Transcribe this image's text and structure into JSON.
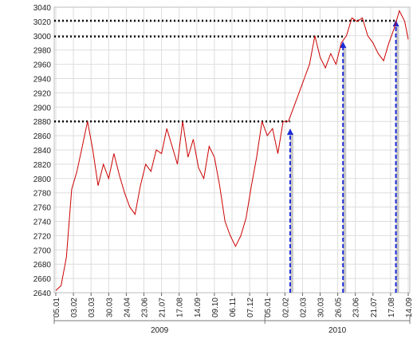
{
  "chart_data": {
    "type": "line",
    "title": "",
    "xlabel": "",
    "ylabel": "",
    "ylim": [
      2640,
      3040
    ],
    "y_ticks": [
      "2640",
      "2660",
      "2680",
      "2700",
      "2720",
      "2740",
      "2760",
      "2780",
      "2800",
      "2820",
      "2840",
      "2860",
      "2880",
      "2900",
      "2920",
      "2940",
      "2960",
      "2980",
      "3000",
      "3020",
      "3040"
    ],
    "x_ticks": [
      "05.01",
      "03.02",
      "03.03",
      "30.03",
      "24.04",
      "23.06",
      "21.07",
      "17.08",
      "14.09",
      "09.10",
      "06.11",
      "07.12",
      "05.01",
      "02.02",
      "02.03",
      "30.03",
      "26.05",
      "23.06",
      "21.07",
      "17.08",
      "14.09"
    ],
    "years": [
      "2009",
      "2010"
    ],
    "grid": true,
    "series": [
      {
        "color": "#cc0000",
        "x": [
          0,
          0.3,
          0.6,
          0.9,
          1.2,
          1.5,
          1.8,
          2.1,
          2.4,
          2.7,
          3.0,
          3.3,
          3.6,
          3.9,
          4.2,
          4.5,
          4.8,
          5.1,
          5.4,
          5.7,
          6.0,
          6.3,
          6.6,
          6.9,
          7.2,
          7.5,
          7.8,
          8.1,
          8.4,
          8.7,
          9.0,
          9.3,
          9.6,
          9.9,
          10.2,
          10.5,
          10.8,
          11.1,
          11.4,
          11.7,
          12.0,
          12.3,
          12.6,
          12.9,
          13.2,
          13.5,
          13.8,
          14.1,
          14.4,
          14.7,
          15.0,
          15.3,
          15.6,
          15.9,
          16.2,
          16.5,
          16.8,
          17.1,
          17.4,
          17.7,
          18.0,
          18.3,
          18.6,
          18.9,
          19.2,
          19.5,
          19.8,
          20.0
        ],
        "values": [
          2643,
          2650,
          2690,
          2785,
          2810,
          2845,
          2880,
          2840,
          2790,
          2820,
          2800,
          2835,
          2805,
          2780,
          2760,
          2750,
          2790,
          2820,
          2810,
          2840,
          2835,
          2870,
          2845,
          2820,
          2880,
          2830,
          2855,
          2815,
          2800,
          2845,
          2830,
          2790,
          2740,
          2720,
          2705,
          2720,
          2745,
          2790,
          2830,
          2880,
          2860,
          2870,
          2835,
          2880,
          2880,
          2900,
          2920,
          2940,
          2960,
          3000,
          2970,
          2955,
          2975,
          2960,
          2990,
          3000,
          3025,
          3020,
          3025,
          3000,
          2990,
          2975,
          2965,
          2990,
          3010,
          3035,
          3020,
          2995
        ]
      }
    ],
    "annotations": [
      {
        "type": "hline",
        "y": 2880
      },
      {
        "type": "hline",
        "y": 2999
      },
      {
        "type": "hline",
        "y": 3021
      },
      {
        "type": "arrow",
        "x": 13.3,
        "y_from": 2640,
        "y_to": 2870
      },
      {
        "type": "arrow",
        "x": 16.3,
        "y_from": 2640,
        "y_to": 2992
      },
      {
        "type": "arrow",
        "x": 19.3,
        "y_from": 2640,
        "y_to": 3022
      }
    ]
  }
}
